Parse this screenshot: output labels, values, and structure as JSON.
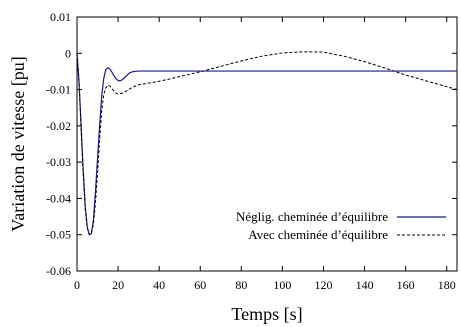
{
  "chart_data": {
    "type": "line",
    "title": "",
    "xlabel": "Temps [s]",
    "ylabel": "Variation de vitesse [pu]",
    "xlim": [
      0,
      185
    ],
    "ylim": [
      -0.06,
      0.01
    ],
    "x_ticks": [
      0,
      20,
      40,
      60,
      80,
      100,
      120,
      140,
      160,
      180
    ],
    "y_ticks": [
      0.01,
      0,
      -0.01,
      -0.02,
      -0.03,
      -0.04,
      -0.05,
      -0.06
    ],
    "x_tick_labels": [
      "0",
      "20",
      "40",
      "60",
      "80",
      "100",
      "120",
      "140",
      "160",
      "180"
    ],
    "y_tick_labels": [
      "0.01",
      "0",
      "-0.01",
      "-0.02",
      "-0.03",
      "-0.04",
      "-0.05",
      "-0.06"
    ],
    "grid": false,
    "legend_position": "bottom-right",
    "series": [
      {
        "name": "Néglig. cheminée d’équilibre",
        "style": "solid",
        "color": "#1a1a8c",
        "x": [
          0,
          1,
          2,
          3,
          4,
          5,
          6,
          7,
          8,
          9,
          10,
          11,
          12,
          13,
          14,
          15,
          16,
          17,
          18,
          19,
          20,
          21,
          22,
          23,
          24,
          25,
          26,
          27,
          28,
          30,
          32,
          35,
          40,
          60,
          100,
          150,
          185
        ],
        "y": [
          0,
          -0.008,
          -0.02,
          -0.032,
          -0.042,
          -0.048,
          -0.05,
          -0.0497,
          -0.046,
          -0.038,
          -0.029,
          -0.02,
          -0.012,
          -0.007,
          -0.0045,
          -0.004,
          -0.0043,
          -0.0052,
          -0.0062,
          -0.007,
          -0.0075,
          -0.0076,
          -0.0073,
          -0.0068,
          -0.0062,
          -0.0057,
          -0.0053,
          -0.0051,
          -0.005,
          -0.0049,
          -0.0049,
          -0.0049,
          -0.0049,
          -0.0049,
          -0.0049,
          -0.0049,
          -0.0049
        ]
      },
      {
        "name": "Avec cheminée d’équilibre",
        "style": "dashed",
        "color": "#000000",
        "x": [
          0,
          1,
          2,
          3,
          4,
          5,
          6,
          7,
          8,
          9,
          10,
          11,
          12,
          13,
          14,
          15,
          16,
          17,
          18,
          19,
          20,
          22,
          24,
          26,
          28,
          30,
          32,
          35,
          38,
          40,
          45,
          50,
          60,
          70,
          80,
          90,
          100,
          110,
          115,
          120,
          130,
          140,
          150,
          160,
          170,
          180,
          185
        ],
        "y": [
          0,
          -0.008,
          -0.021,
          -0.033,
          -0.043,
          -0.048,
          -0.05,
          -0.0495,
          -0.047,
          -0.041,
          -0.033,
          -0.024,
          -0.016,
          -0.0115,
          -0.0095,
          -0.0088,
          -0.009,
          -0.0097,
          -0.0104,
          -0.011,
          -0.0112,
          -0.011,
          -0.0104,
          -0.0097,
          -0.0091,
          -0.0087,
          -0.0085,
          -0.0082,
          -0.0079,
          -0.0077,
          -0.0071,
          -0.0064,
          -0.0051,
          -0.0036,
          -0.0021,
          -0.0008,
          0.0001,
          0.0004,
          0.0004,
          0.0003,
          -0.0008,
          -0.0023,
          -0.0041,
          -0.006,
          -0.0076,
          -0.0092,
          -0.01
        ]
      }
    ]
  },
  "colors": {
    "axis": "#000000",
    "solid_series": "#1a1a8c",
    "dashed_series": "#000000",
    "background": "#ffffff"
  }
}
